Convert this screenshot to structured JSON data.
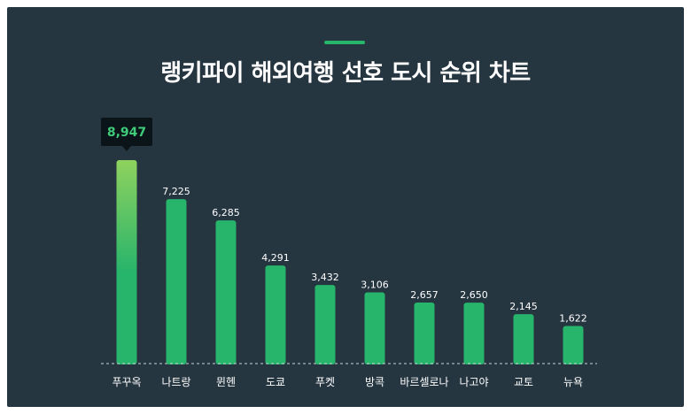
{
  "chart_data": {
    "type": "bar",
    "title": "랭키파이 해외여행 선호 도시 순위 차트",
    "categories": [
      "푸꾸옥",
      "나트랑",
      "뮌헨",
      "도쿄",
      "푸켓",
      "방콕",
      "바르셀로나",
      "나고야",
      "교토",
      "뉴욕"
    ],
    "values": [
      8947,
      7225,
      6285,
      4291,
      3432,
      3106,
      2657,
      2650,
      2145,
      1622
    ],
    "value_labels": [
      "8,947",
      "7,225",
      "6,285",
      "4,291",
      "3,432",
      "3,106",
      "2,657",
      "2,650",
      "2,145",
      "1,622"
    ],
    "highlight_index": 0,
    "highlight_label": "8,947",
    "ylim": [
      0,
      8947
    ],
    "grid": false,
    "legend": "none"
  },
  "colors": {
    "background": "#263641",
    "bar": "#27b46b",
    "bar_highlight_top": "#8fd25e",
    "accent": "#27b46b",
    "callout_bg": "#0b1419",
    "callout_text": "#3fcc7a",
    "baseline": "#c9d1d6"
  }
}
